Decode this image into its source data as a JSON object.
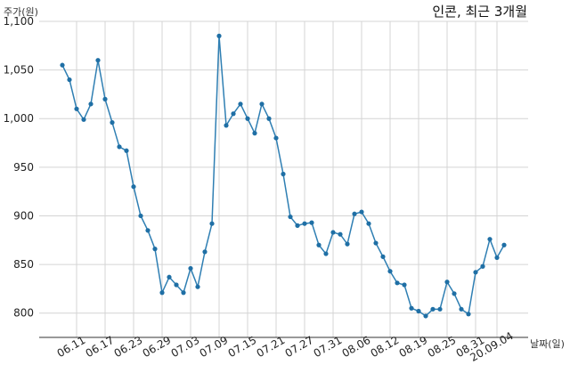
{
  "chart_data": {
    "type": "line",
    "title": "인콘, 최근 3개월",
    "ylabel": "주가(원)",
    "xlabel": "날짜(일)",
    "ylim": [
      775,
      1100
    ],
    "yticks": [
      800,
      850,
      900,
      950,
      1000,
      1050,
      1100
    ],
    "ytick_labels": [
      "800",
      "850",
      "900",
      "950",
      "1,000",
      "1,050",
      "1,100"
    ],
    "grid": true,
    "color": "#2f7fb3",
    "xtick_labels": [
      {
        "label": "06.11",
        "index": 2
      },
      {
        "label": "06.17",
        "index": 6
      },
      {
        "label": "06.23",
        "index": 10
      },
      {
        "label": "06.29",
        "index": 14
      },
      {
        "label": "07.03",
        "index": 18
      },
      {
        "label": "07.09",
        "index": 22
      },
      {
        "label": "07.15",
        "index": 26
      },
      {
        "label": "07.21",
        "index": 30
      },
      {
        "label": "07.27",
        "index": 34
      },
      {
        "label": "07.31",
        "index": 38
      },
      {
        "label": "08.06",
        "index": 42
      },
      {
        "label": "08.12",
        "index": 46
      },
      {
        "label": "08.19",
        "index": 50
      },
      {
        "label": "08.25",
        "index": 54
      },
      {
        "label": "08.31",
        "index": 58
      },
      {
        "label": "20.09.04",
        "index": 61
      }
    ],
    "values": [
      1055,
      1040,
      1010,
      999,
      1015,
      1060,
      1020,
      996,
      971,
      967,
      930,
      900,
      885,
      866,
      821,
      837,
      829,
      821,
      846,
      827,
      863,
      892,
      1085,
      993,
      1005,
      1015,
      1000,
      985,
      1015,
      1000,
      980,
      943,
      899,
      890,
      892,
      893,
      870,
      861,
      883,
      881,
      871,
      902,
      904,
      892,
      872,
      858,
      843,
      831,
      829,
      805,
      802,
      797,
      804,
      804,
      832,
      820,
      804,
      799,
      842,
      848,
      876,
      857,
      870
    ]
  }
}
